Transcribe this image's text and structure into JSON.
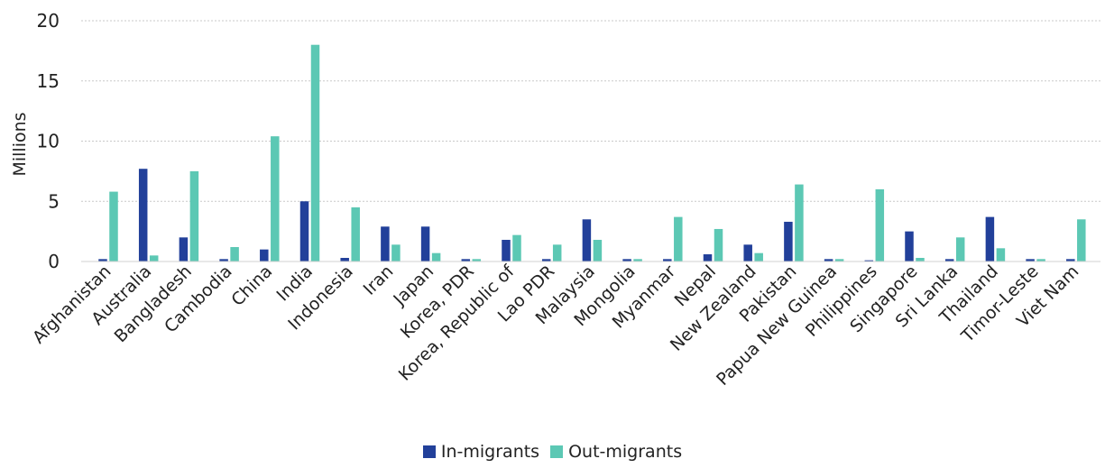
{
  "chart_data": {
    "type": "bar",
    "ylabel": "Millions",
    "ylim": [
      0,
      20
    ],
    "yticks": [
      0,
      5,
      10,
      15,
      20
    ],
    "grid": "horizontal dotted",
    "legend_position": "bottom-center",
    "categories": [
      "Afghanistan",
      "Australia",
      "Bangladesh",
      "Cambodia",
      "China",
      "India",
      "Indonesia",
      "Iran",
      "Japan",
      "Korea, PDR",
      "Korea, Republic of",
      "Lao PDR",
      "Malaysia",
      "Mongolia",
      "Myanmar",
      "Nepal",
      "New Zealand",
      "Pakistan",
      "Papua New Guinea",
      "Philippines",
      "Singapore",
      "Sri Lanka",
      "Thailand",
      "Timor-Leste",
      "Viet Nam"
    ],
    "series": [
      {
        "name": "In-migrants",
        "color": "#22409a",
        "values": [
          0.2,
          7.7,
          2.0,
          0.2,
          1.0,
          5.0,
          0.3,
          2.9,
          2.9,
          0.2,
          1.8,
          0.2,
          3.5,
          0.2,
          0.2,
          0.6,
          1.4,
          3.3,
          0.2,
          0.1,
          2.5,
          0.2,
          3.7,
          0.2,
          0.2
        ]
      },
      {
        "name": "Out-migrants",
        "color": "#5cc8b4",
        "values": [
          5.8,
          0.5,
          7.5,
          1.2,
          10.4,
          18.0,
          4.5,
          1.4,
          0.7,
          0.2,
          2.2,
          1.4,
          1.8,
          0.2,
          3.7,
          2.7,
          0.7,
          6.4,
          0.2,
          6.0,
          0.3,
          2.0,
          1.1,
          0.2,
          3.5
        ]
      }
    ]
  }
}
